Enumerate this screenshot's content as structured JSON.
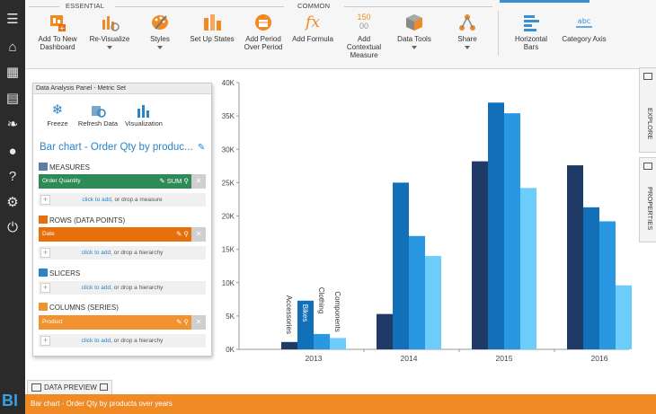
{
  "ribbon": {
    "groups": {
      "essential": "ESSENTIAL",
      "common": "COMMON"
    },
    "buttons": {
      "add_to_dashboard": "Add To New Dashboard",
      "revisualize": "Re-Visualize",
      "styles": "Styles",
      "set_up_states": "Set Up States",
      "add_period": "Add Period Over Period",
      "add_formula": "Add Formula",
      "add_contextual": "Add Contextual Measure",
      "data_tools": "Data Tools",
      "share": "Share",
      "horizontal_bars": "Horizontal Bars",
      "category_axis": "Category Axis"
    },
    "contextual_icon_text": "150",
    "category_icon_text": "abc"
  },
  "side_tabs": {
    "explore": "EXPLORE",
    "properties": "PROPERTIES"
  },
  "panel": {
    "title": "Data Analysis Panel - Metric Set",
    "tools": {
      "freeze": "Freeze",
      "refresh": "Refresh Data",
      "visualization": "Visualization"
    },
    "metric_set_name": "Bar chart - Order Qty by produc...",
    "sections": {
      "measures": "MEASURES",
      "rows": "ROWS (DATA POINTS)",
      "slicers": "SLICERS",
      "columns": "COLUMNS (SERIES)"
    },
    "fields": {
      "measure": "Order Quantity",
      "measure_agg": "SUM",
      "row": "Date",
      "column": "Product"
    },
    "drop_hints": {
      "link": "click to add,",
      "measure": "or drop a measure",
      "hierarchy": "or drop a hierarchy"
    }
  },
  "data_preview": {
    "label": "DATA PREVIEW"
  },
  "bottom_bar": {
    "title": "Bar chart - Order Qty by products over years"
  },
  "colors": {
    "measure_field": "#2e8b57",
    "row_field": "#e8700c",
    "column_field": "#f0922e",
    "accent": "#2a84c8",
    "bottom_bar": "#f08a24"
  },
  "chart_data": {
    "type": "bar",
    "categories": [
      "2013",
      "2014",
      "2015",
      "2016"
    ],
    "series": [
      {
        "name": "Accessories",
        "values": [
          1100,
          5300,
          28200,
          27600
        ]
      },
      {
        "name": "Bikes",
        "values": [
          7300,
          25000,
          37000,
          21300
        ]
      },
      {
        "name": "Clothing",
        "values": [
          2300,
          17000,
          35400,
          19200
        ]
      },
      {
        "name": "Components",
        "values": [
          1700,
          14000,
          24200,
          9600
        ]
      }
    ],
    "series_colors": [
      "#1f3a66",
      "#1270b8",
      "#2a97e2",
      "#6ccdfb"
    ],
    "yticks": [
      "0K",
      "5K",
      "10K",
      "15K",
      "20K",
      "25K",
      "30K",
      "35K",
      "40K"
    ],
    "ylim": [
      0,
      40000
    ],
    "series_labels_category": "2013",
    "grid": false
  }
}
